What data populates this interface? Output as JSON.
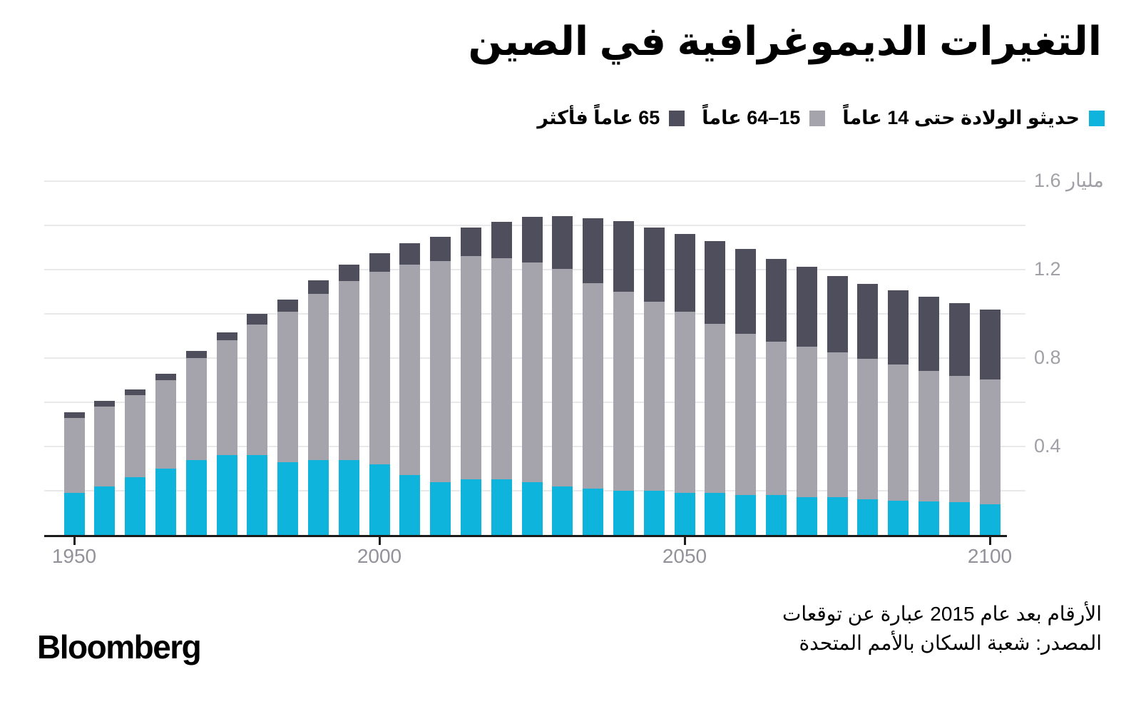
{
  "title": "التغيرات الديموغرافية في الصين",
  "legend": {
    "items": [
      {
        "label": "حديثو الولادة حتى 14 عاماً",
        "color": "#0fb4dc",
        "key": "age-0-14"
      },
      {
        "label": "15–64 عاماً",
        "color": "#a5a4ac",
        "key": "age-15-64"
      },
      {
        "label": "65 عاماً فأكثر",
        "color": "#4f4e5c",
        "key": "age-65-plus"
      }
    ]
  },
  "footnote": {
    "line1": "الأرقام بعد عام 2015 عبارة عن توقعات",
    "line2": "المصدر: شعبة السكان بالأمم المتحدة"
  },
  "brand": "Bloomberg",
  "colors": {
    "accent_cyan": "#0fb4dc",
    "mid_gray": "#a5a4ac",
    "dark_slate": "#4f4e5c",
    "gridline": "#e9e9eb",
    "axis_line": "#1b1b1b",
    "axis_text": "#92929a"
  },
  "chart_data": {
    "type": "bar",
    "stacked": true,
    "unit": "مليار",
    "categories": [
      1950,
      1955,
      1960,
      1965,
      1970,
      1975,
      1980,
      1985,
      1990,
      1995,
      2000,
      2005,
      2010,
      2015,
      2020,
      2025,
      2030,
      2035,
      2040,
      2045,
      2050,
      2055,
      2060,
      2065,
      2070,
      2075,
      2080,
      2085,
      2090,
      2095,
      2100
    ],
    "series": [
      {
        "name": "حديثو الولادة حتى 14 عاماً",
        "color": "#0fb4dc",
        "values": [
          0.19,
          0.22,
          0.26,
          0.3,
          0.34,
          0.36,
          0.36,
          0.33,
          0.34,
          0.34,
          0.32,
          0.27,
          0.24,
          0.25,
          0.25,
          0.24,
          0.22,
          0.21,
          0.2,
          0.2,
          0.19,
          0.19,
          0.18,
          0.18,
          0.17,
          0.17,
          0.16,
          0.155,
          0.15,
          0.148,
          0.14
        ]
      },
      {
        "name": "15–64 عاماً",
        "color": "#a5a4ac",
        "values": [
          0.34,
          0.36,
          0.37,
          0.4,
          0.46,
          0.52,
          0.59,
          0.68,
          0.75,
          0.81,
          0.87,
          0.95,
          1.0,
          1.01,
          1.0,
          0.995,
          0.985,
          0.93,
          0.9,
          0.855,
          0.82,
          0.765,
          0.73,
          0.695,
          0.68,
          0.655,
          0.635,
          0.615,
          0.59,
          0.57,
          0.565
        ]
      },
      {
        "name": "65 عاماً فأكثر",
        "color": "#4f4e5c",
        "values": [
          0.025,
          0.027,
          0.027,
          0.028,
          0.031,
          0.037,
          0.047,
          0.054,
          0.062,
          0.073,
          0.085,
          0.098,
          0.11,
          0.128,
          0.165,
          0.205,
          0.24,
          0.295,
          0.32,
          0.335,
          0.35,
          0.375,
          0.385,
          0.375,
          0.36,
          0.345,
          0.34,
          0.335,
          0.335,
          0.33,
          0.315
        ]
      }
    ],
    "xlabel": "",
    "ylabel": "مليار",
    "ylim": [
      0,
      1.6
    ],
    "grid": true,
    "gridline_step": 0.2,
    "y_axis": {
      "tick_values": [
        0.4,
        0.8,
        1.2,
        1.6
      ],
      "tick_labels": [
        "0.4",
        "0.8",
        "1.2",
        "1.6 مليار"
      ],
      "side": "right"
    },
    "x_axis": {
      "tick_indices": [
        0,
        10,
        20,
        30
      ],
      "tick_labels": [
        "1950",
        "2000",
        "2050",
        "2100"
      ]
    },
    "legend_position": "top-right"
  }
}
